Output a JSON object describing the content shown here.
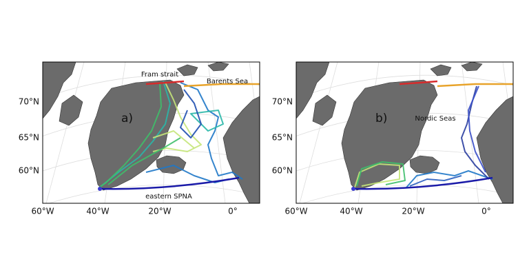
{
  "panels": [
    {
      "label": "a)",
      "annotations": [
        "Fram strait",
        "Barents Sea",
        "eastern SPNA"
      ],
      "lat_labels": [
        "70°N",
        "65°N",
        "60°N"
      ],
      "lon_labels": [
        "60°W",
        "40°W",
        "20°W",
        "0°"
      ]
    },
    {
      "label": "b)",
      "annotations": [
        "Nordic Seas"
      ],
      "lat_labels": [
        "70°N",
        "65°N",
        "60°N"
      ],
      "lon_labels": [
        "60°W",
        "40°W",
        "20°W",
        "0°"
      ]
    }
  ]
}
